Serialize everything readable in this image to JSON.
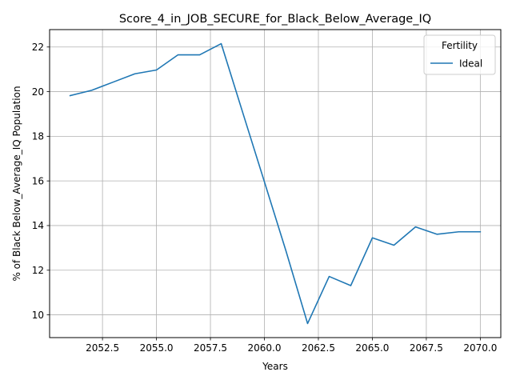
{
  "chart_data": {
    "type": "line",
    "title": "Score_4_in_JOB_SECURE_for_Black_Below_Average_IQ",
    "xlabel": "Years",
    "ylabel": "% of Black Below_Average_IQ Population",
    "xlim": [
      2050.05,
      2070.95
    ],
    "ylim": [
      8.98,
      22.78
    ],
    "x_ticks": [
      2052.5,
      2055.0,
      2057.5,
      2060.0,
      2062.5,
      2065.0,
      2067.5,
      2070.0
    ],
    "x_tick_labels": [
      "2052.5",
      "2055.0",
      "2057.5",
      "2060.0",
      "2062.5",
      "2065.0",
      "2067.5",
      "2070.0"
    ],
    "y_ticks": [
      10,
      12,
      14,
      16,
      18,
      20,
      22
    ],
    "y_tick_labels": [
      "10",
      "12",
      "14",
      "16",
      "18",
      "20",
      "22"
    ],
    "grid": true,
    "legend_title": "Fertility",
    "legend_position": "top-right",
    "series": [
      {
        "name": "Ideal",
        "color": "#1f77b4",
        "x": [
          2051,
          2052,
          2053,
          2054,
          2055,
          2056,
          2057,
          2058,
          2059,
          2060,
          2061,
          2062,
          2063,
          2064,
          2065,
          2066,
          2067,
          2068,
          2069,
          2070
        ],
        "y": [
          19.82,
          20.06,
          20.43,
          20.8,
          20.97,
          21.65,
          21.65,
          22.15,
          19.05,
          15.96,
          12.86,
          9.61,
          11.72,
          11.31,
          13.45,
          13.12,
          13.94,
          13.61,
          13.72,
          13.72
        ]
      }
    ]
  }
}
